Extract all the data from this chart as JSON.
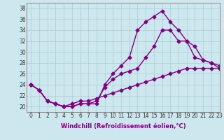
{
  "xlabel": "Windchill (Refroidissement éolien,°C)",
  "background_color": "#cce8ee",
  "line_color": "#800080",
  "xlim": [
    -0.5,
    23
  ],
  "ylim": [
    19,
    39
  ],
  "yticks": [
    20,
    22,
    24,
    26,
    28,
    30,
    32,
    34,
    36,
    38
  ],
  "xticks": [
    0,
    1,
    2,
    3,
    4,
    5,
    6,
    7,
    8,
    9,
    10,
    11,
    12,
    13,
    14,
    15,
    16,
    17,
    18,
    19,
    20,
    21,
    22,
    23
  ],
  "series1_x": [
    0,
    1,
    2,
    3,
    4,
    5,
    6,
    7,
    8,
    9,
    10,
    11,
    12,
    13,
    14,
    15,
    16,
    17,
    18,
    19,
    20,
    21,
    22,
    23
  ],
  "series1_y": [
    24,
    23,
    21,
    20.5,
    20,
    20,
    20.5,
    20.5,
    20.5,
    24,
    26,
    27.5,
    29,
    34,
    35.5,
    36.5,
    37.5,
    35.5,
    34,
    32,
    29,
    28.5,
    28,
    27.5
  ],
  "series2_x": [
    0,
    1,
    2,
    3,
    4,
    5,
    6,
    7,
    8,
    9,
    10,
    11,
    12,
    13,
    14,
    15,
    16,
    17,
    18,
    19,
    20,
    21,
    22,
    23
  ],
  "series2_y": [
    24,
    23,
    21,
    20.5,
    20,
    20,
    20.5,
    20.5,
    21,
    23.5,
    25,
    26,
    26.5,
    27,
    29,
    31,
    34,
    34,
    32,
    32,
    31,
    28.5,
    28,
    27
  ],
  "series3_x": [
    0,
    1,
    2,
    3,
    4,
    5,
    6,
    7,
    8,
    9,
    10,
    11,
    12,
    13,
    14,
    15,
    16,
    17,
    18,
    19,
    20,
    21,
    22,
    23
  ],
  "series3_y": [
    24,
    23,
    21,
    20.5,
    20,
    20.5,
    21,
    21,
    21.5,
    22,
    22.5,
    23,
    23.5,
    24,
    24.5,
    25,
    25.5,
    26,
    26.5,
    27,
    27,
    27,
    27,
    27
  ],
  "marker": "D",
  "markersize": 2.5,
  "linewidth": 1.0,
  "grid_color": "#aaccd4",
  "tick_labelsize": 5.5,
  "xlabel_fontsize": 6.0
}
